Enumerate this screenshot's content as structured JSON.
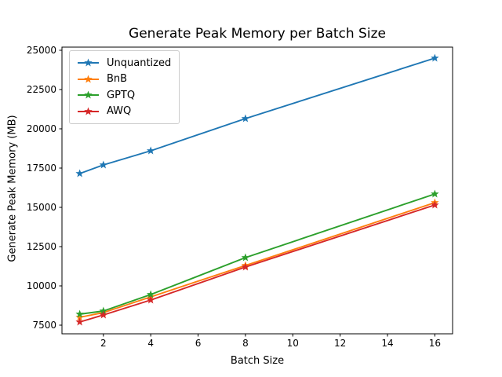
{
  "window": {
    "background": "#ffffff"
  },
  "chart_data": {
    "type": "line",
    "title": "Generate Peak Memory per Batch Size",
    "xlabel": "Batch Size",
    "ylabel": "Generate Peak Memory (MB)",
    "x": [
      1,
      2,
      4,
      8,
      16
    ],
    "series": [
      {
        "name": "Unquantized",
        "color": "#1f77b4",
        "values": [
          17150,
          17700,
          18600,
          20650,
          24500
        ]
      },
      {
        "name": "BnB",
        "color": "#ff7f0e",
        "values": [
          8000,
          8300,
          9300,
          11300,
          15300
        ]
      },
      {
        "name": "GPTQ",
        "color": "#2ca02c",
        "values": [
          8200,
          8400,
          9450,
          11800,
          15850
        ]
      },
      {
        "name": "AWQ",
        "color": "#d62728",
        "values": [
          7700,
          8150,
          9100,
          11200,
          15150
        ]
      }
    ],
    "marker": "star",
    "x_ticks": [
      2,
      4,
      6,
      8,
      10,
      12,
      14,
      16
    ],
    "y_ticks": [
      7500,
      10000,
      12500,
      15000,
      17500,
      20000,
      22500,
      25000
    ],
    "xlim": [
      0.25,
      16.75
    ],
    "ylim": [
      6950,
      25200
    ],
    "grid": false,
    "legend": {
      "position": "upper left"
    },
    "axis_color": "#000000",
    "tick_label_color": "#000000"
  }
}
